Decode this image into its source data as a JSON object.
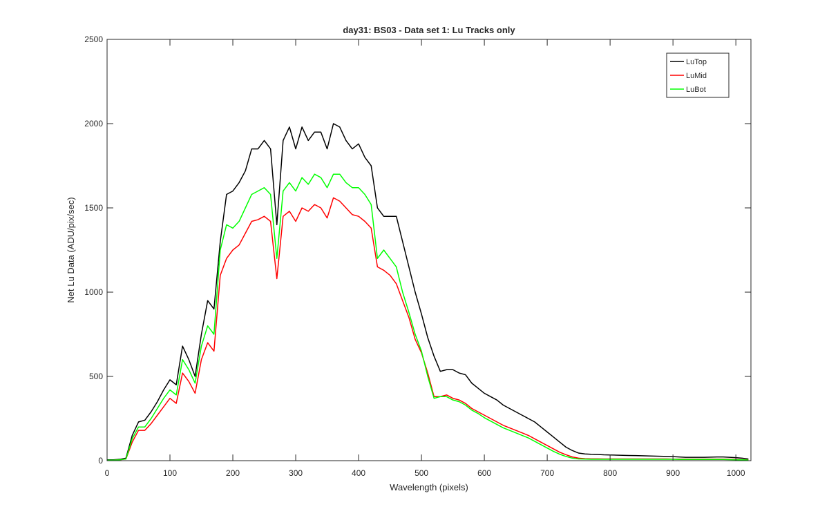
{
  "chart_data": {
    "type": "line",
    "title": "day31: BS03 - Data set 1: Lu Tracks only",
    "x_label": "Wavelength (pixels)",
    "y_label": "Net Lu Data (ADU/pix/sec)",
    "xlim": [
      0,
      1024
    ],
    "ylim": [
      0,
      2500
    ],
    "xticks": [
      0,
      100,
      200,
      300,
      400,
      500,
      600,
      700,
      800,
      900,
      1000
    ],
    "yticks": [
      0,
      500,
      1000,
      1500,
      2000,
      2500
    ],
    "legend_position": "upper-right",
    "x": [
      0,
      10,
      20,
      30,
      40,
      50,
      60,
      70,
      80,
      90,
      100,
      110,
      120,
      130,
      140,
      150,
      160,
      170,
      180,
      190,
      200,
      210,
      220,
      230,
      240,
      250,
      260,
      270,
      280,
      290,
      300,
      310,
      320,
      330,
      340,
      350,
      360,
      370,
      380,
      390,
      400,
      410,
      420,
      430,
      440,
      450,
      460,
      470,
      480,
      490,
      500,
      510,
      520,
      530,
      540,
      550,
      560,
      570,
      580,
      590,
      600,
      610,
      620,
      630,
      640,
      650,
      660,
      670,
      680,
      690,
      700,
      710,
      720,
      730,
      740,
      750,
      760,
      770,
      780,
      790,
      800,
      810,
      820,
      830,
      840,
      850,
      860,
      870,
      880,
      890,
      900,
      910,
      920,
      930,
      940,
      950,
      960,
      970,
      980,
      990,
      1000,
      1010,
      1020
    ],
    "series": [
      {
        "name": "LuTop",
        "color": "#000000",
        "values": [
          5,
          5,
          8,
          15,
          150,
          230,
          240,
          290,
          350,
          420,
          480,
          450,
          680,
          600,
          500,
          750,
          950,
          900,
          1300,
          1580,
          1600,
          1650,
          1720,
          1850,
          1850,
          1900,
          1850,
          1400,
          1900,
          1980,
          1850,
          1980,
          1900,
          1950,
          1950,
          1850,
          2000,
          1980,
          1900,
          1850,
          1880,
          1800,
          1750,
          1500,
          1450,
          1450,
          1450,
          1300,
          1150,
          1000,
          870,
          730,
          620,
          530,
          540,
          540,
          520,
          510,
          460,
          430,
          400,
          380,
          360,
          330,
          310,
          290,
          270,
          250,
          230,
          200,
          170,
          140,
          110,
          80,
          60,
          45,
          40,
          38,
          37,
          35,
          34,
          33,
          32,
          31,
          30,
          29,
          28,
          27,
          26,
          25,
          24,
          22,
          20,
          20,
          20,
          20,
          21,
          22,
          22,
          20,
          18,
          15,
          10
        ]
      },
      {
        "name": "LuMid",
        "color": "#ff0000",
        "values": [
          3,
          3,
          5,
          10,
          110,
          180,
          180,
          220,
          270,
          320,
          370,
          340,
          520,
          470,
          400,
          600,
          700,
          650,
          1100,
          1200,
          1250,
          1280,
          1350,
          1420,
          1430,
          1450,
          1420,
          1080,
          1450,
          1480,
          1420,
          1500,
          1480,
          1520,
          1500,
          1440,
          1560,
          1540,
          1500,
          1460,
          1450,
          1420,
          1380,
          1150,
          1130,
          1100,
          1050,
          950,
          850,
          720,
          640,
          520,
          380,
          380,
          390,
          370,
          360,
          340,
          310,
          290,
          270,
          250,
          230,
          210,
          195,
          180,
          165,
          150,
          130,
          110,
          90,
          70,
          50,
          35,
          22,
          15,
          12,
          11,
          11,
          10,
          10,
          10,
          10,
          10,
          10,
          10,
          10,
          10,
          10,
          10,
          9,
          9,
          9,
          9,
          9,
          9,
          9,
          9,
          9,
          8,
          7,
          6,
          5
        ]
      },
      {
        "name": "LuBot",
        "color": "#00ff00",
        "values": [
          3,
          3,
          5,
          10,
          130,
          200,
          200,
          250,
          310,
          370,
          420,
          390,
          600,
          540,
          460,
          680,
          800,
          750,
          1250,
          1400,
          1380,
          1420,
          1500,
          1580,
          1600,
          1620,
          1580,
          1200,
          1600,
          1650,
          1600,
          1680,
          1640,
          1700,
          1680,
          1620,
          1700,
          1700,
          1650,
          1620,
          1620,
          1580,
          1520,
          1200,
          1250,
          1200,
          1150,
          1000,
          880,
          750,
          650,
          500,
          370,
          380,
          380,
          360,
          350,
          330,
          300,
          280,
          255,
          235,
          215,
          195,
          180,
          165,
          150,
          135,
          115,
          95,
          75,
          55,
          38,
          25,
          15,
          10,
          9,
          8,
          8,
          8,
          8,
          8,
          8,
          8,
          8,
          8,
          8,
          8,
          8,
          8,
          8,
          7,
          7,
          7,
          7,
          7,
          7,
          7,
          7,
          6,
          5,
          5,
          4
        ]
      }
    ]
  }
}
